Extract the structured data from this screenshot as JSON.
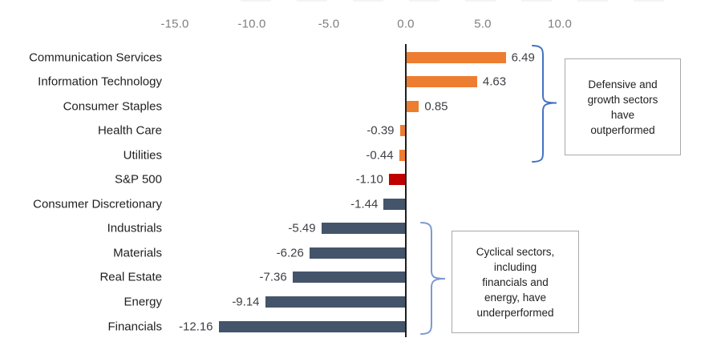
{
  "chart_data": {
    "type": "bar",
    "orientation": "horizontal",
    "title": "",
    "xlabel": "",
    "ylabel": "",
    "grid": "off",
    "legend": "none",
    "x_axis": {
      "ticks": [
        -15,
        -10,
        -5,
        0,
        5,
        10
      ],
      "tick_labels": [
        "-15.0",
        "-10.0",
        "-5.0",
        "0.0",
        "5.0",
        "10.0"
      ],
      "range": [
        -15,
        10
      ]
    },
    "bars": [
      {
        "label": "Communication Services",
        "value": 6.49,
        "display": "6.49",
        "group": "defensive_growth"
      },
      {
        "label": "Information Technology",
        "value": 4.63,
        "display": "4.63",
        "group": "defensive_growth"
      },
      {
        "label": "Consumer Staples",
        "value": 0.85,
        "display": "0.85",
        "group": "defensive_growth"
      },
      {
        "label": "Health Care",
        "value": -0.39,
        "display": "-0.39",
        "group": "defensive_growth"
      },
      {
        "label": "Utilities",
        "value": -0.44,
        "display": "-0.44",
        "group": "defensive_growth"
      },
      {
        "label": "S&P 500",
        "value": -1.1,
        "display": "-1.10",
        "group": "benchmark"
      },
      {
        "label": "Consumer Discretionary",
        "value": -1.44,
        "display": "-1.44",
        "group": "cyclical"
      },
      {
        "label": "Industrials",
        "value": -5.49,
        "display": "-5.49",
        "group": "cyclical"
      },
      {
        "label": "Materials",
        "value": -6.26,
        "display": "-6.26",
        "group": "cyclical"
      },
      {
        "label": "Real Estate",
        "value": -7.36,
        "display": "-7.36",
        "group": "cyclical"
      },
      {
        "label": "Energy",
        "value": -9.14,
        "display": "-9.14",
        "group": "cyclical"
      },
      {
        "label": "Financials",
        "value": -12.16,
        "display": "-12.16",
        "group": "cyclical"
      }
    ],
    "group_colors": {
      "defensive_growth": "#ED7D31",
      "benchmark": "#C00000",
      "cyclical": "#44546A"
    },
    "annotations": [
      {
        "text": "Defensive and\ngrowth sectors\nhave\noutperformed",
        "applies_to": "Communication Services through Utilities"
      },
      {
        "text": "Cyclical sectors,\nincluding\nfinancials and\nenergy, have\nunderperformed",
        "applies_to": "Industrials through Financials"
      }
    ]
  },
  "colors": {
    "background": "#FFFFFF",
    "axis_line": "#1F1F1F",
    "tick_text": "#7F7F7F",
    "category_text": "#1F1F1F",
    "value_text": "#3F3F46",
    "note_border": "#A9A9A9",
    "note_text": "#1F1F1F",
    "brace_top": "#4472C4",
    "brace_bottom": "#7E99D0"
  }
}
